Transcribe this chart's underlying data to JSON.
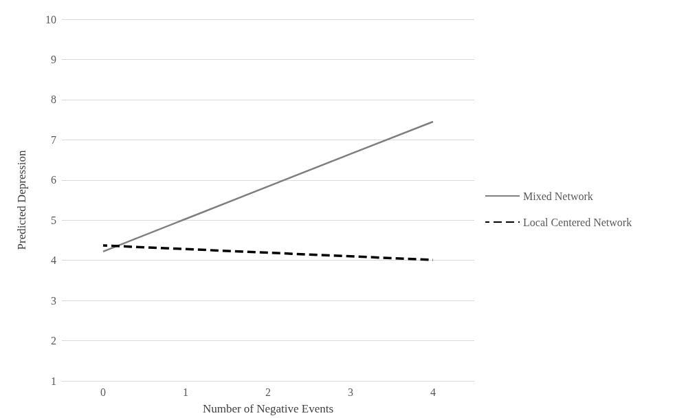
{
  "chart_data": {
    "type": "line",
    "xlabel": "Number of Negative Events",
    "ylabel": "Predicted Depression",
    "categories": [
      "0",
      "1",
      "2",
      "3",
      "4"
    ],
    "series": [
      {
        "name": "Mixed Network",
        "color": "#7f7f7f",
        "line_style": "solid",
        "values": [
          4.22,
          5.03,
          5.84,
          6.65,
          7.45
        ]
      },
      {
        "name": "Local Centered Network",
        "color": "#000000",
        "line_style": "dashed",
        "values": [
          4.37,
          4.28,
          4.19,
          4.1,
          4.01
        ]
      }
    ],
    "ylim": [
      1,
      10
    ],
    "yticks": [
      1,
      2,
      3,
      4,
      5,
      6,
      7,
      8,
      9,
      10
    ],
    "grid": "y",
    "legend": "right",
    "marker": "none"
  }
}
